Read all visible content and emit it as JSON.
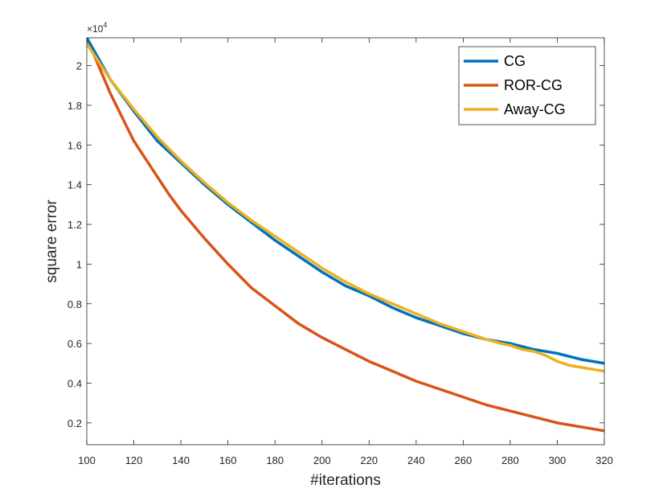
{
  "chart_data": {
    "type": "line",
    "title": "",
    "xlabel": "#iterations",
    "ylabel": "square error",
    "y_exponent_base": "×10",
    "y_exponent_power": "4",
    "xlim": [
      100,
      320
    ],
    "ylim": [
      0.09,
      2.14
    ],
    "xticks": [
      100,
      120,
      140,
      160,
      180,
      200,
      220,
      240,
      260,
      280,
      300,
      320
    ],
    "xtick_labels": [
      "100",
      "120",
      "140",
      "160",
      "180",
      "200",
      "220",
      "240",
      "260",
      "280",
      "300",
      "320"
    ],
    "yticks": [
      0.2,
      0.4,
      0.6,
      0.8,
      1.0,
      1.2,
      1.4,
      1.6,
      1.8,
      2.0
    ],
    "ytick_labels": [
      "0.2",
      "0.4",
      "0.6",
      "0.8",
      "1",
      "1.2",
      "1.4",
      "1.6",
      "1.8",
      "2"
    ],
    "legend_position": "top-right",
    "series": [
      {
        "name": "CG",
        "color": "#0072BD",
        "x": [
          100,
          110,
          120,
          130,
          140,
          150,
          160,
          170,
          180,
          190,
          200,
          210,
          220,
          230,
          240,
          250,
          260,
          270,
          280,
          290,
          300,
          310,
          320
        ],
        "y": [
          2.14,
          1.93,
          1.77,
          1.62,
          1.51,
          1.4,
          1.3,
          1.21,
          1.12,
          1.04,
          0.96,
          0.89,
          0.84,
          0.78,
          0.73,
          0.69,
          0.65,
          0.62,
          0.6,
          0.57,
          0.55,
          0.52,
          0.5
        ]
      },
      {
        "name": "ROR-CG",
        "color": "#D95319",
        "x": [
          100,
          105,
          110,
          115,
          120,
          125,
          130,
          135,
          140,
          150,
          160,
          170,
          180,
          190,
          200,
          210,
          220,
          230,
          240,
          250,
          260,
          270,
          280,
          290,
          300,
          310,
          320
        ],
        "y": [
          2.14,
          2.0,
          1.86,
          1.74,
          1.62,
          1.53,
          1.44,
          1.35,
          1.27,
          1.13,
          1.0,
          0.88,
          0.79,
          0.7,
          0.63,
          0.57,
          0.51,
          0.46,
          0.41,
          0.37,
          0.33,
          0.29,
          0.26,
          0.23,
          0.2,
          0.18,
          0.16
        ]
      },
      {
        "name": "Away-CG",
        "color": "#EDB120",
        "x": [
          100,
          110,
          120,
          130,
          140,
          150,
          160,
          170,
          180,
          190,
          200,
          210,
          220,
          230,
          240,
          250,
          260,
          270,
          276,
          280,
          285,
          290,
          295,
          300,
          305,
          310,
          315,
          320
        ],
        "y": [
          2.11,
          1.93,
          1.78,
          1.64,
          1.52,
          1.41,
          1.31,
          1.22,
          1.14,
          1.06,
          0.98,
          0.91,
          0.85,
          0.8,
          0.75,
          0.7,
          0.66,
          0.62,
          0.6,
          0.59,
          0.57,
          0.56,
          0.54,
          0.51,
          0.49,
          0.48,
          0.47,
          0.46
        ]
      }
    ]
  }
}
